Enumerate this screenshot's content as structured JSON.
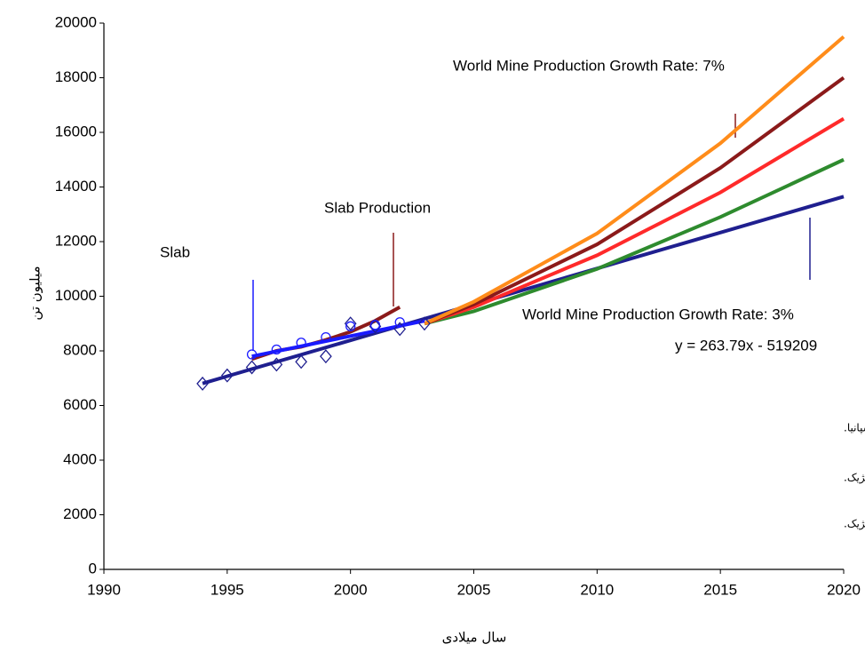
{
  "chart_data": {
    "type": "line",
    "xlim": [
      1990,
      2020
    ],
    "xticks": [
      1990,
      1995,
      2000,
      2005,
      2010,
      2015,
      2020
    ],
    "ylim": [
      0,
      20000
    ],
    "yticks": [
      0,
      2000,
      4000,
      6000,
      8000,
      10000,
      12000,
      14000,
      16000,
      18000,
      20000
    ],
    "y_label": "میلیون تن",
    "x_label": "سال میلادی",
    "series": [
      {
        "type": "line",
        "color": "#1f1f8f",
        "x": [
          1994,
          2020
        ],
        "values": [
          6808,
          13647
        ]
      },
      {
        "type": "line",
        "color": "#2e8b2e",
        "x": [
          2003,
          2005,
          2010,
          2015,
          2020
        ],
        "values": [
          9000,
          9450,
          11000,
          12900,
          15000
        ]
      },
      {
        "type": "line",
        "color": "#ff2a2a",
        "x": [
          2003,
          2005,
          2010,
          2015,
          2020
        ],
        "values": [
          9000,
          9600,
          11500,
          13800,
          16500
        ]
      },
      {
        "type": "line",
        "color": "#8b1a1a",
        "x": [
          2003,
          2005,
          2010,
          2015,
          2020
        ],
        "values": [
          9000,
          9700,
          11900,
          14700,
          18000
        ]
      },
      {
        "type": "line",
        "color": "#ff8c1a",
        "x": [
          2003,
          2005,
          2010,
          2015,
          2020
        ],
        "values": [
          9000,
          9800,
          12300,
          15600,
          19500
        ]
      },
      {
        "type": "line",
        "color": "#8b1a1a",
        "x": [
          1996,
          1997,
          1998,
          1999,
          2000,
          2001,
          2002
        ],
        "values": [
          7700,
          8000,
          8150,
          8400,
          8700,
          9100,
          9600
        ]
      },
      {
        "type": "line",
        "color": "#1a1aff",
        "x": [
          1996,
          2003
        ],
        "values": [
          7800,
          9100
        ]
      },
      {
        "type": "scatter",
        "marker": "diamond",
        "color": "#1f1f8f",
        "x": [
          1994,
          1995,
          1996,
          1997,
          1998,
          1999,
          2000,
          2001,
          2002,
          2003
        ],
        "values": [
          6800,
          7100,
          7400,
          7500,
          7600,
          7800,
          9000,
          8900,
          8800,
          9000
        ]
      },
      {
        "type": "scatter",
        "marker": "circle",
        "color": "#1a1aff",
        "x": [
          1996,
          1997,
          1998,
          1999,
          2000,
          2001,
          2002
        ],
        "values": [
          7870,
          8050,
          8300,
          8500,
          8900,
          8950,
          9050
        ]
      }
    ],
    "annotations": [
      {
        "text": "Slab",
        "color": "#1a1aff"
      },
      {
        "text": "Slab Production",
        "color": "#8b1a1a"
      },
      {
        "text": "World Mine Production Growth Rate: 7%",
        "color": "#1f1f8f"
      },
      {
        "text": "World Mine Production Growth Rate: 3%",
        "color": "#1f1f8f"
      },
      {
        "text": "y = 263.79x - 519209",
        "color": "#1f1f8f"
      },
      {
        "text": "کشورهای عمده تامین کننده کانه روی:  چین، استرالیا، کانادا، پرو، آمریکا، ایرلند، لهستان، سوئد و اسپانیا.",
        "color": "#000000"
      },
      {
        "text": "کشورهای عمده تولید کننده تختال روی: چین، کانادا، ژاپن، اسپانیا، آلمان، استرالیا، فرانسه، فنلاند و بلژیک.",
        "color": "#000000"
      },
      {
        "text": "کشورهای عمده مصرف کننده تختال روی:        آمریکا، چین، کره جنوبی، آلمان، فرانسه، ایتالیا و بلژیک.",
        "color": "#000000"
      }
    ]
  }
}
